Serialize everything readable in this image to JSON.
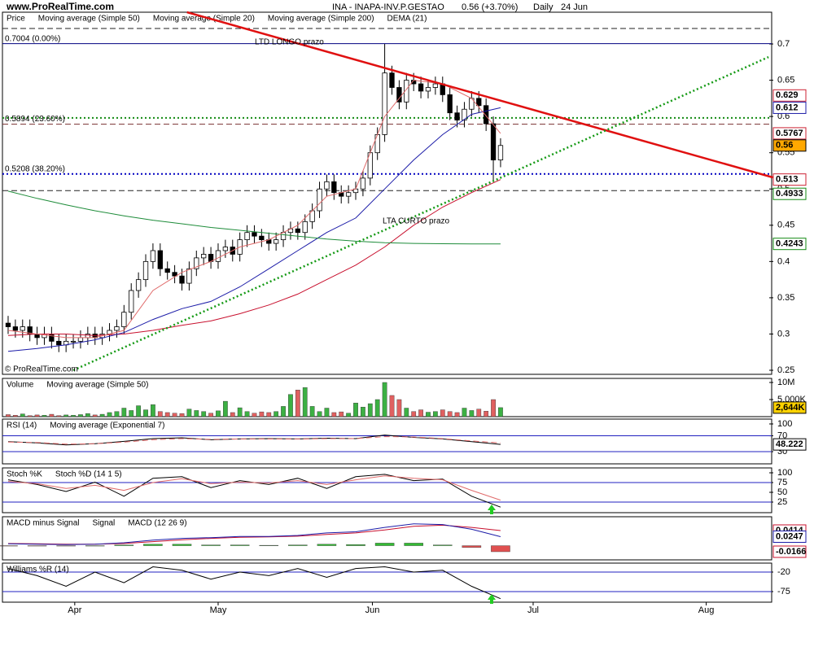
{
  "header": {
    "site": "www.ProRealTime.com",
    "copyright": "© ProRealTime.com"
  },
  "chart_data": [
    {
      "type": "candlestick",
      "title": "INA - INAPA-INV.P.GESTAO",
      "change": "0.56 (+3.70%)",
      "period": "Daily",
      "date": "24 Jun",
      "name": "Price",
      "open": [
        0.315,
        0.31,
        0.305,
        0.31,
        0.3,
        0.295,
        0.3,
        0.29,
        0.285,
        0.29,
        0.29,
        0.295,
        0.3,
        0.295,
        0.3,
        0.305,
        0.31,
        0.33,
        0.36,
        0.375,
        0.4,
        0.415,
        0.39,
        0.385,
        0.38,
        0.37,
        0.39,
        0.405,
        0.41,
        0.4,
        0.415,
        0.42,
        0.41,
        0.43,
        0.44,
        0.435,
        0.43,
        0.425,
        0.43,
        0.44,
        0.445,
        0.44,
        0.455,
        0.47,
        0.5,
        0.51,
        0.495,
        0.49,
        0.495,
        0.5,
        0.515,
        0.55,
        0.575,
        0.66,
        0.64,
        0.62,
        0.65,
        0.645,
        0.635,
        0.64,
        0.645,
        0.63,
        0.605,
        0.595,
        0.61,
        0.625,
        0.615,
        0.59,
        0.54
      ],
      "high": [
        0.325,
        0.32,
        0.32,
        0.32,
        0.31,
        0.31,
        0.31,
        0.3,
        0.3,
        0.3,
        0.305,
        0.31,
        0.31,
        0.31,
        0.315,
        0.32,
        0.34,
        0.37,
        0.385,
        0.41,
        0.425,
        0.425,
        0.4,
        0.395,
        0.39,
        0.4,
        0.415,
        0.42,
        0.42,
        0.425,
        0.43,
        0.43,
        0.44,
        0.45,
        0.45,
        0.445,
        0.44,
        0.44,
        0.45,
        0.455,
        0.455,
        0.465,
        0.48,
        0.51,
        0.52,
        0.52,
        0.505,
        0.505,
        0.51,
        0.525,
        0.56,
        0.585,
        0.7,
        0.67,
        0.65,
        0.66,
        0.66,
        0.655,
        0.65,
        0.655,
        0.655,
        0.64,
        0.615,
        0.62,
        0.635,
        0.635,
        0.625,
        0.6,
        0.57
      ],
      "low": [
        0.3,
        0.295,
        0.295,
        0.29,
        0.285,
        0.285,
        0.28,
        0.275,
        0.275,
        0.28,
        0.28,
        0.285,
        0.285,
        0.285,
        0.29,
        0.295,
        0.3,
        0.32,
        0.35,
        0.365,
        0.39,
        0.38,
        0.375,
        0.37,
        0.36,
        0.36,
        0.38,
        0.395,
        0.39,
        0.39,
        0.405,
        0.4,
        0.4,
        0.42,
        0.425,
        0.42,
        0.415,
        0.415,
        0.42,
        0.43,
        0.43,
        0.43,
        0.445,
        0.46,
        0.49,
        0.485,
        0.48,
        0.48,
        0.485,
        0.49,
        0.505,
        0.54,
        0.565,
        0.63,
        0.61,
        0.61,
        0.635,
        0.625,
        0.625,
        0.63,
        0.62,
        0.595,
        0.585,
        0.585,
        0.6,
        0.605,
        0.58,
        0.51,
        0.53
      ],
      "close": [
        0.31,
        0.305,
        0.31,
        0.3,
        0.295,
        0.3,
        0.29,
        0.285,
        0.29,
        0.29,
        0.295,
        0.3,
        0.295,
        0.3,
        0.305,
        0.31,
        0.33,
        0.36,
        0.375,
        0.4,
        0.415,
        0.39,
        0.385,
        0.38,
        0.37,
        0.39,
        0.405,
        0.41,
        0.4,
        0.415,
        0.42,
        0.41,
        0.43,
        0.44,
        0.435,
        0.43,
        0.425,
        0.43,
        0.44,
        0.445,
        0.44,
        0.455,
        0.47,
        0.5,
        0.51,
        0.495,
        0.49,
        0.495,
        0.5,
        0.515,
        0.55,
        0.575,
        0.66,
        0.64,
        0.62,
        0.65,
        0.645,
        0.635,
        0.64,
        0.645,
        0.63,
        0.605,
        0.595,
        0.61,
        0.625,
        0.615,
        0.59,
        0.54,
        0.56
      ],
      "series": [
        {
          "name": "Moving average (Simple 50)",
          "color": "#c8102e",
          "x": [
            0,
            4,
            8,
            12,
            16,
            20,
            24,
            28,
            32,
            36,
            40,
            44,
            48,
            52,
            56,
            60,
            64,
            68
          ],
          "values": [
            0.298,
            0.3,
            0.3,
            0.298,
            0.3,
            0.305,
            0.312,
            0.318,
            0.328,
            0.34,
            0.355,
            0.375,
            0.395,
            0.42,
            0.45,
            0.475,
            0.495,
            0.513
          ]
        },
        {
          "name": "Moving average (Simple 20)",
          "color": "#1c1ca8",
          "x": [
            0,
            4,
            8,
            12,
            16,
            20,
            24,
            28,
            32,
            36,
            40,
            44,
            48,
            52,
            56,
            60,
            64,
            68
          ],
          "values": [
            0.276,
            0.28,
            0.285,
            0.292,
            0.302,
            0.32,
            0.335,
            0.345,
            0.365,
            0.39,
            0.415,
            0.44,
            0.46,
            0.5,
            0.54,
            0.575,
            0.603,
            0.612
          ]
        },
        {
          "name": "Moving average (Simple 200)",
          "color": "#1e8c3a",
          "x": [
            0,
            4,
            8,
            12,
            16,
            20,
            24,
            28,
            32,
            36,
            40,
            44,
            48,
            52,
            56,
            60,
            64,
            68
          ],
          "values": [
            0.497,
            0.487,
            0.478,
            0.47,
            0.463,
            0.457,
            0.452,
            0.447,
            0.443,
            0.439,
            0.435,
            0.431,
            0.428,
            0.426,
            0.425,
            0.4245,
            0.4243,
            0.4243
          ]
        },
        {
          "name": "DEMA (21)",
          "color": "#e06a6a",
          "x": [
            0,
            4,
            8,
            12,
            16,
            20,
            24,
            28,
            32,
            36,
            40,
            44,
            48,
            52,
            56,
            60,
            64,
            68
          ],
          "values": [
            0.305,
            0.3,
            0.295,
            0.295,
            0.305,
            0.36,
            0.385,
            0.4,
            0.42,
            0.43,
            0.45,
            0.49,
            0.5,
            0.6,
            0.65,
            0.645,
            0.625,
            0.5767
          ]
        }
      ],
      "trendlines": [
        {
          "label": "LTD LONGO prazo",
          "color": "#e01010",
          "style": "solid",
          "x": [
            24.7,
            105.6
          ],
          "values": [
            0.7438,
            0.516
          ]
        },
        {
          "label": "LTA CURTO prazo",
          "color": "#159a15",
          "style": "dotted",
          "x": [
            9,
            105
          ],
          "values": [
            0.25,
            0.682
          ]
        }
      ],
      "levels": [
        {
          "value": 0.7213,
          "color": "#222222",
          "style": "dashed"
        },
        {
          "value": 0.7004,
          "label": "0.7004 (0.00%)",
          "color": "#000080",
          "style": "solid"
        },
        {
          "value": 0.598,
          "color": "#128a12",
          "style": "dotted"
        },
        {
          "value": 0.5894,
          "label": "0.5894 (23.60%)",
          "color": "#7a3030",
          "style": "dashed"
        },
        {
          "value": 0.5208,
          "label": "0.5208 (38.20%)",
          "color": "#0000c0",
          "style": "dotted"
        },
        {
          "value": 0.4978,
          "color": "#222222",
          "style": "dashed"
        }
      ],
      "value_boxes": [
        {
          "value": 0.629,
          "color": "#cc2233",
          "background": "#ffffff"
        },
        {
          "value": 0.612,
          "color": "#1c1ca8",
          "background": "#ffffff"
        },
        {
          "value": 0.5767,
          "color": "#cc2233",
          "background": "#ffffff"
        },
        {
          "value": 0.56,
          "color": "#000000",
          "background": "#ffa800"
        },
        {
          "value": 0.513,
          "color": "#cc2233",
          "background": "#ffffff"
        },
        {
          "value": 0.4933,
          "color": "#128a12",
          "background": "#ffffff"
        },
        {
          "value": 0.4243,
          "color": "#128a12",
          "background": "#ffffff"
        }
      ],
      "up_color": "#ffffff",
      "down_color": "#000000",
      "xlim": [
        -0.56,
        105.1
      ],
      "xticks": [
        {
          "value": 9.2,
          "label": "Apr"
        },
        {
          "value": 29,
          "label": "May"
        },
        {
          "value": 50.3,
          "label": "Jun"
        },
        {
          "value": 72.5,
          "label": "Jul"
        },
        {
          "value": 96.4,
          "label": "Aug"
        }
      ],
      "ylim": [
        0.2444,
        0.7438
      ],
      "yticks": [
        0.7,
        0.65,
        0.6,
        0.55,
        0.5,
        0.45,
        0.4,
        0.35,
        0.3,
        0.25
      ]
    },
    {
      "type": "bar",
      "series": [
        {
          "name": "Volume",
          "color": "#3cb043",
          "negative_color": "#e06060",
          "values": [
            600,
            400,
            800,
            300,
            500,
            400,
            700,
            300,
            500,
            400,
            600,
            900,
            500,
            700,
            1200,
            1500,
            2500,
            1800,
            3200,
            2000,
            3500,
            1500,
            1200,
            1000,
            900,
            2200,
            1800,
            1500,
            1000,
            1700,
            4500,
            1200,
            2600,
            1500,
            1000,
            1400,
            1200,
            1500,
            3000,
            6500,
            7800,
            8500,
            3000,
            1500,
            2500,
            1200,
            1400,
            1000,
            4000,
            2800,
            3800,
            5000,
            10000,
            6200,
            5000,
            2500,
            1500,
            2000,
            1300,
            1500,
            2000,
            1500,
            1200,
            2500,
            1800,
            2200,
            1600,
            5000,
            2644
          ]
        },
        {
          "name": "Moving average (Simple 50)",
          "color": "#c8102e"
        }
      ],
      "value_boxes": [
        {
          "value": 2644,
          "label": "2,644K",
          "color": "#000000",
          "background": "#ffd200"
        }
      ],
      "ylim": [
        0,
        11190
      ],
      "yticks": [
        {
          "value": 10000,
          "label": "10M"
        },
        {
          "value": 5000,
          "label": "5,000K"
        }
      ]
    },
    {
      "type": "line",
      "x": [
        0,
        4,
        8,
        12,
        16,
        20,
        24,
        28,
        32,
        36,
        40,
        44,
        48,
        52,
        56,
        60,
        64,
        68
      ],
      "series": [
        {
          "name": "RSI (14)",
          "color": "#000000",
          "values": [
            55,
            52,
            47,
            50,
            56,
            63,
            65,
            60,
            62,
            63,
            62,
            64,
            63,
            72,
            66,
            62,
            55,
            48.222
          ]
        },
        {
          "name": "Moving average (Exponential 7)",
          "color": "#e06a6a",
          "style": "dashed",
          "values": [
            54,
            53,
            49,
            50,
            54,
            60,
            63,
            61,
            62,
            62,
            62,
            63,
            63,
            68,
            67,
            63,
            57,
            52
          ]
        }
      ],
      "levels": [
        70,
        30
      ],
      "value_boxes": [
        {
          "value": 48.222,
          "color": "#000000",
          "background": "#ffffff"
        }
      ],
      "ylim": [
        -0.9,
        112.3
      ],
      "yticks": [
        100,
        70,
        30
      ]
    },
    {
      "type": "line",
      "x": [
        0,
        4,
        8,
        12,
        16,
        20,
        24,
        28,
        32,
        36,
        40,
        44,
        48,
        52,
        56,
        60,
        64,
        68
      ],
      "series": [
        {
          "name": "Stoch %K",
          "color": "#000000",
          "values": [
            82,
            70,
            52,
            76,
            40,
            86,
            90,
            62,
            80,
            70,
            86,
            60,
            90,
            96,
            80,
            84,
            40,
            12
          ]
        },
        {
          "name": "Stoch %D (14 1 5)",
          "color": "#e06a6a",
          "values": [
            78,
            72,
            60,
            68,
            55,
            75,
            85,
            72,
            76,
            74,
            80,
            70,
            82,
            92,
            86,
            82,
            55,
            30
          ]
        }
      ],
      "levels": [
        75,
        25
      ],
      "ylim": [
        -2.1,
        112.5
      ],
      "yticks": [
        100,
        75,
        50,
        25
      ]
    },
    {
      "type": "line",
      "x": [
        0,
        4,
        8,
        12,
        16,
        20,
        24,
        28,
        32,
        36,
        40,
        44,
        48,
        52,
        56,
        60,
        64,
        68
      ],
      "series": [
        {
          "name": "MACD minus Signal",
          "type": "bar",
          "color": "#33bb33",
          "negative_color": "#e05050",
          "values": [
            -0.001,
            -0.001,
            -0.001,
            0,
            0.002,
            0.004,
            0.004,
            0.002,
            0.002,
            0.001,
            0.002,
            0.004,
            0.003,
            0.007,
            0.007,
            0.002,
            -0.005,
            -0.0166
          ]
        },
        {
          "name": "Signal",
          "color": "#c8102e",
          "values": [
            0.006,
            0.005,
            0.004,
            0.004,
            0.006,
            0.011,
            0.016,
            0.02,
            0.023,
            0.024,
            0.026,
            0.031,
            0.035,
            0.043,
            0.053,
            0.056,
            0.05,
            0.0414
          ]
        },
        {
          "name": "MACD (12 26 9)",
          "color": "#1c1ca8",
          "values": [
            0.005,
            0.004,
            0.003,
            0.004,
            0.008,
            0.015,
            0.02,
            0.022,
            0.025,
            0.025,
            0.028,
            0.035,
            0.038,
            0.05,
            0.06,
            0.058,
            0.045,
            0.0247
          ]
        }
      ],
      "value_boxes": [
        {
          "value": 0.0414,
          "color": "#c8102e",
          "background": "#ffffff"
        },
        {
          "value": 0.0247,
          "color": "#1c1ca8",
          "background": "#ffffff"
        },
        {
          "value": -0.0166,
          "color": "#c8102e",
          "background": "#ffffff"
        }
      ],
      "ylim": [
        -0.0389,
        0.0793
      ]
    },
    {
      "type": "line",
      "x": [
        0,
        4,
        8,
        12,
        16,
        20,
        24,
        28,
        32,
        36,
        40,
        44,
        48,
        52,
        56,
        60,
        64,
        68
      ],
      "series": [
        {
          "name": "Williams %R (14)",
          "color": "#000000",
          "values": [
            -10,
            -30,
            -60,
            -20,
            -50,
            -5,
            -15,
            -40,
            -20,
            -30,
            -10,
            -35,
            -10,
            -5,
            -20,
            -15,
            -60,
            -95
          ]
        }
      ],
      "levels": [
        -20,
        -75
      ],
      "ylim": [
        -104.8,
        5.2
      ],
      "yticks": [
        -20,
        -75
      ]
    }
  ]
}
